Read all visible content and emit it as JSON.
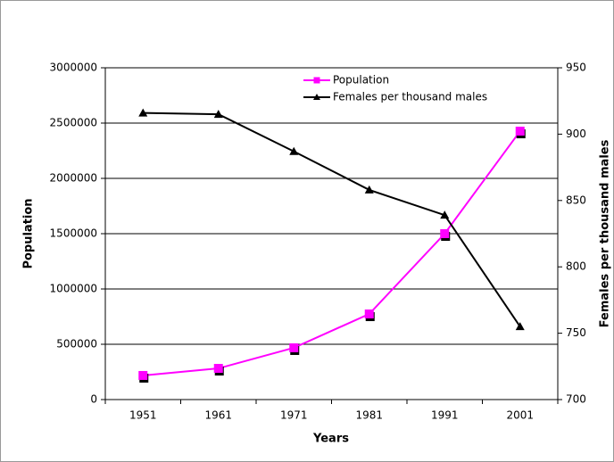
{
  "chart_data": {
    "type": "line",
    "categories": [
      "1951",
      "1961",
      "1971",
      "1981",
      "1991",
      "2001"
    ],
    "series": [
      {
        "name": "Population",
        "color": "#ff00ff",
        "marker": "square",
        "values": [
          218000,
          282000,
          468000,
          774000,
          1500000,
          2427000
        ]
      },
      {
        "name": "Females per thousand males",
        "color": "#000000",
        "marker": "triangle",
        "axis": "y2",
        "values": [
          916,
          915,
          887,
          858,
          839,
          755
        ]
      }
    ],
    "x_label": "Years",
    "y_label": "Population",
    "y2_label": "Females per thousand males",
    "ylim": [
      0,
      3000000
    ],
    "yticks": [
      0,
      500000,
      1000000,
      1500000,
      2000000,
      2500000,
      3000000
    ],
    "y2lim": [
      700,
      950
    ],
    "y2ticks": [
      700,
      750,
      800,
      850,
      900,
      950
    ],
    "grid": true,
    "legend": "top"
  }
}
